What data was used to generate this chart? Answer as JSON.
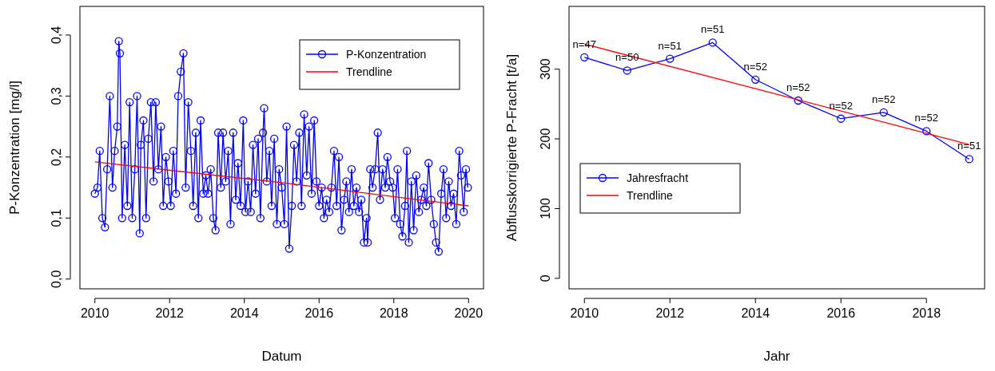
{
  "chart_data": [
    {
      "type": "line",
      "xlabel": "Datum",
      "ylabel": "P-Konzentration [mg/l]",
      "xlim": [
        2009.6,
        2020.4
      ],
      "ylim": [
        -0.016,
        0.447
      ],
      "xticks": [
        2010,
        2012,
        2014,
        2016,
        2018,
        2020
      ],
      "yticks": [
        {
          "value": 0,
          "label": "0,0"
        },
        {
          "value": 0.1,
          "label": "0,1"
        },
        {
          "value": 0.2,
          "label": "0,2"
        },
        {
          "value": 0.3,
          "label": "0,3"
        },
        {
          "value": 0.4,
          "label": "0,4"
        }
      ],
      "legend": "top right",
      "grid": false,
      "series": [
        {
          "name": "P-Konzentration",
          "color": "#0000ff",
          "marker": "circle",
          "x": [
            2010.0,
            2010.07,
            2010.13,
            2010.2,
            2010.27,
            2010.33,
            2010.4,
            2010.47,
            2010.53,
            2010.6,
            2010.64,
            2010.67,
            2010.73,
            2010.8,
            2010.87,
            2010.93,
            2011.0,
            2011.07,
            2011.13,
            2011.2,
            2011.23,
            2011.3,
            2011.37,
            2011.43,
            2011.5,
            2011.57,
            2011.63,
            2011.7,
            2011.77,
            2011.83,
            2011.9,
            2011.97,
            2012.03,
            2012.1,
            2012.17,
            2012.23,
            2012.3,
            2012.37,
            2012.43,
            2012.5,
            2012.57,
            2012.63,
            2012.7,
            2012.77,
            2012.83,
            2012.9,
            2012.97,
            2013.03,
            2013.1,
            2013.17,
            2013.23,
            2013.3,
            2013.37,
            2013.43,
            2013.5,
            2013.57,
            2013.63,
            2013.7,
            2013.77,
            2013.83,
            2013.9,
            2013.97,
            2014.03,
            2014.1,
            2014.17,
            2014.23,
            2014.3,
            2014.37,
            2014.43,
            2014.5,
            2014.53,
            2014.6,
            2014.67,
            2014.73,
            2014.8,
            2014.87,
            2014.93,
            2015.0,
            2015.07,
            2015.13,
            2015.2,
            2015.27,
            2015.33,
            2015.4,
            2015.47,
            2015.53,
            2015.6,
            2015.67,
            2015.73,
            2015.8,
            2015.87,
            2015.93,
            2016.0,
            2016.07,
            2016.13,
            2016.2,
            2016.27,
            2016.33,
            2016.4,
            2016.47,
            2016.53,
            2016.6,
            2016.67,
            2016.73,
            2016.8,
            2016.87,
            2016.93,
            2017.0,
            2017.07,
            2017.13,
            2017.2,
            2017.27,
            2017.3,
            2017.37,
            2017.43,
            2017.5,
            2017.57,
            2017.63,
            2017.7,
            2017.77,
            2017.83,
            2017.9,
            2017.97,
            2018.03,
            2018.1,
            2018.17,
            2018.23,
            2018.3,
            2018.35,
            2018.4,
            2018.47,
            2018.53,
            2018.6,
            2018.67,
            2018.73,
            2018.8,
            2018.87,
            2018.93,
            2019.0,
            2019.07,
            2019.13,
            2019.2,
            2019.27,
            2019.33,
            2019.4,
            2019.47,
            2019.53,
            2019.6,
            2019.67,
            2019.75,
            2019.8,
            2019.87,
            2019.93,
            2019.98
          ],
          "values": [
            0.14,
            0.15,
            0.21,
            0.1,
            0.085,
            0.18,
            0.3,
            0.15,
            0.21,
            0.25,
            0.39,
            0.37,
            0.1,
            0.22,
            0.12,
            0.29,
            0.1,
            0.18,
            0.3,
            0.075,
            0.22,
            0.26,
            0.1,
            0.23,
            0.29,
            0.16,
            0.29,
            0.18,
            0.25,
            0.12,
            0.2,
            0.16,
            0.12,
            0.21,
            0.14,
            0.3,
            0.34,
            0.37,
            0.15,
            0.29,
            0.21,
            0.12,
            0.24,
            0.1,
            0.26,
            0.14,
            0.17,
            0.14,
            0.18,
            0.1,
            0.08,
            0.24,
            0.15,
            0.24,
            0.16,
            0.21,
            0.09,
            0.24,
            0.13,
            0.19,
            0.12,
            0.26,
            0.11,
            0.16,
            0.11,
            0.22,
            0.14,
            0.23,
            0.1,
            0.24,
            0.28,
            0.16,
            0.21,
            0.12,
            0.23,
            0.09,
            0.18,
            0.15,
            0.09,
            0.25,
            0.05,
            0.12,
            0.22,
            0.16,
            0.24,
            0.12,
            0.27,
            0.17,
            0.25,
            0.14,
            0.26,
            0.16,
            0.12,
            0.15,
            0.1,
            0.13,
            0.11,
            0.15,
            0.21,
            0.12,
            0.2,
            0.08,
            0.13,
            0.16,
            0.11,
            0.18,
            0.12,
            0.15,
            0.11,
            0.13,
            0.06,
            0.1,
            0.06,
            0.18,
            0.15,
            0.18,
            0.24,
            0.13,
            0.18,
            0.15,
            0.2,
            0.16,
            0.15,
            0.1,
            0.18,
            0.09,
            0.07,
            0.12,
            0.21,
            0.06,
            0.16,
            0.08,
            0.17,
            0.11,
            0.13,
            0.15,
            0.12,
            0.19,
            0.13,
            0.09,
            0.06,
            0.045,
            0.14,
            0.18,
            0.1,
            0.16,
            0.12,
            0.14,
            0.09,
            0.21,
            0.17,
            0.11,
            0.18,
            0.15
          ]
        },
        {
          "name": "Trendline",
          "color": "#ff0000",
          "marker": "none",
          "x": [
            2010,
            2015,
            2020
          ],
          "values": [
            0.192,
            0.158,
            0.12
          ]
        }
      ]
    },
    {
      "type": "line",
      "xlabel": "Jahr",
      "ylabel": "Abflusskorrigierte P-Fracht [t/a]",
      "xlim": [
        2009.64,
        2019.36
      ],
      "ylim": [
        -15,
        390
      ],
      "xticks": [
        2010,
        2012,
        2014,
        2016,
        2018
      ],
      "yticks": [
        0,
        100,
        200,
        300
      ],
      "legend": "left",
      "grid": false,
      "series": [
        {
          "name": "Jahresfracht",
          "color": "#0000ff",
          "marker": "circle",
          "x": [
            2010,
            2011,
            2012,
            2013,
            2014,
            2015,
            2016,
            2017,
            2018,
            2019
          ],
          "values": [
            317,
            298,
            315,
            338,
            285,
            255,
            229,
            238,
            211,
            171
          ]
        },
        {
          "name": "Trendline",
          "color": "#ff0000",
          "marker": "none",
          "x": [
            2010,
            2019
          ],
          "values": [
            336,
            192
          ]
        }
      ],
      "annotations": [
        {
          "text": "n=47",
          "x": 2010,
          "y": 317
        },
        {
          "text": "n=50",
          "x": 2011,
          "y": 298
        },
        {
          "text": "n=51",
          "x": 2012,
          "y": 315
        },
        {
          "text": "n=51",
          "x": 2013,
          "y": 338
        },
        {
          "text": "n=52",
          "x": 2014,
          "y": 285
        },
        {
          "text": "n=52",
          "x": 2015,
          "y": 255
        },
        {
          "text": "n=52",
          "x": 2016,
          "y": 229
        },
        {
          "text": "n=52",
          "x": 2017,
          "y": 238
        },
        {
          "text": "n=52",
          "x": 2018,
          "y": 211
        },
        {
          "text": "n=51",
          "x": 2019,
          "y": 171
        }
      ]
    }
  ]
}
